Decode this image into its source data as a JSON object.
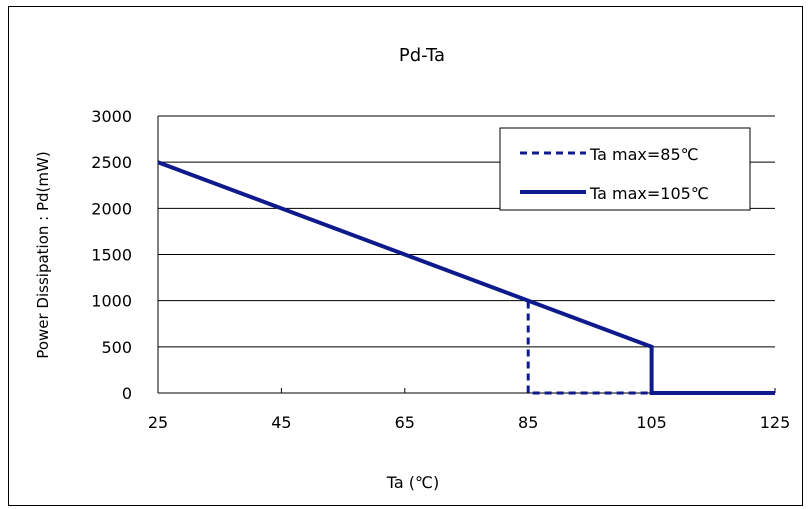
{
  "chart_data": {
    "type": "line",
    "title": "Pd-Ta",
    "xlabel": "Ta (℃)",
    "ylabel": "Power Dissipation : Pd(mW)",
    "xlim": [
      25,
      125
    ],
    "ylim": [
      0,
      3000
    ],
    "xticks": [
      25,
      45,
      65,
      85,
      105,
      125
    ],
    "yticks": [
      0,
      500,
      1000,
      1500,
      2000,
      2500,
      3000
    ],
    "grid": "horizontal",
    "legend_position": "top-right",
    "series": [
      {
        "name": "Ta max=85℃",
        "style": "dashed",
        "color": "#0f1a8c",
        "x": [
          25,
          85,
          85,
          125
        ],
        "y": [
          2500,
          1000,
          0,
          0
        ]
      },
      {
        "name": "Ta max=105℃",
        "style": "solid",
        "color": "#0f1a8c",
        "x": [
          25,
          105,
          105,
          125
        ],
        "y": [
          2500,
          500,
          0,
          0
        ]
      }
    ]
  }
}
